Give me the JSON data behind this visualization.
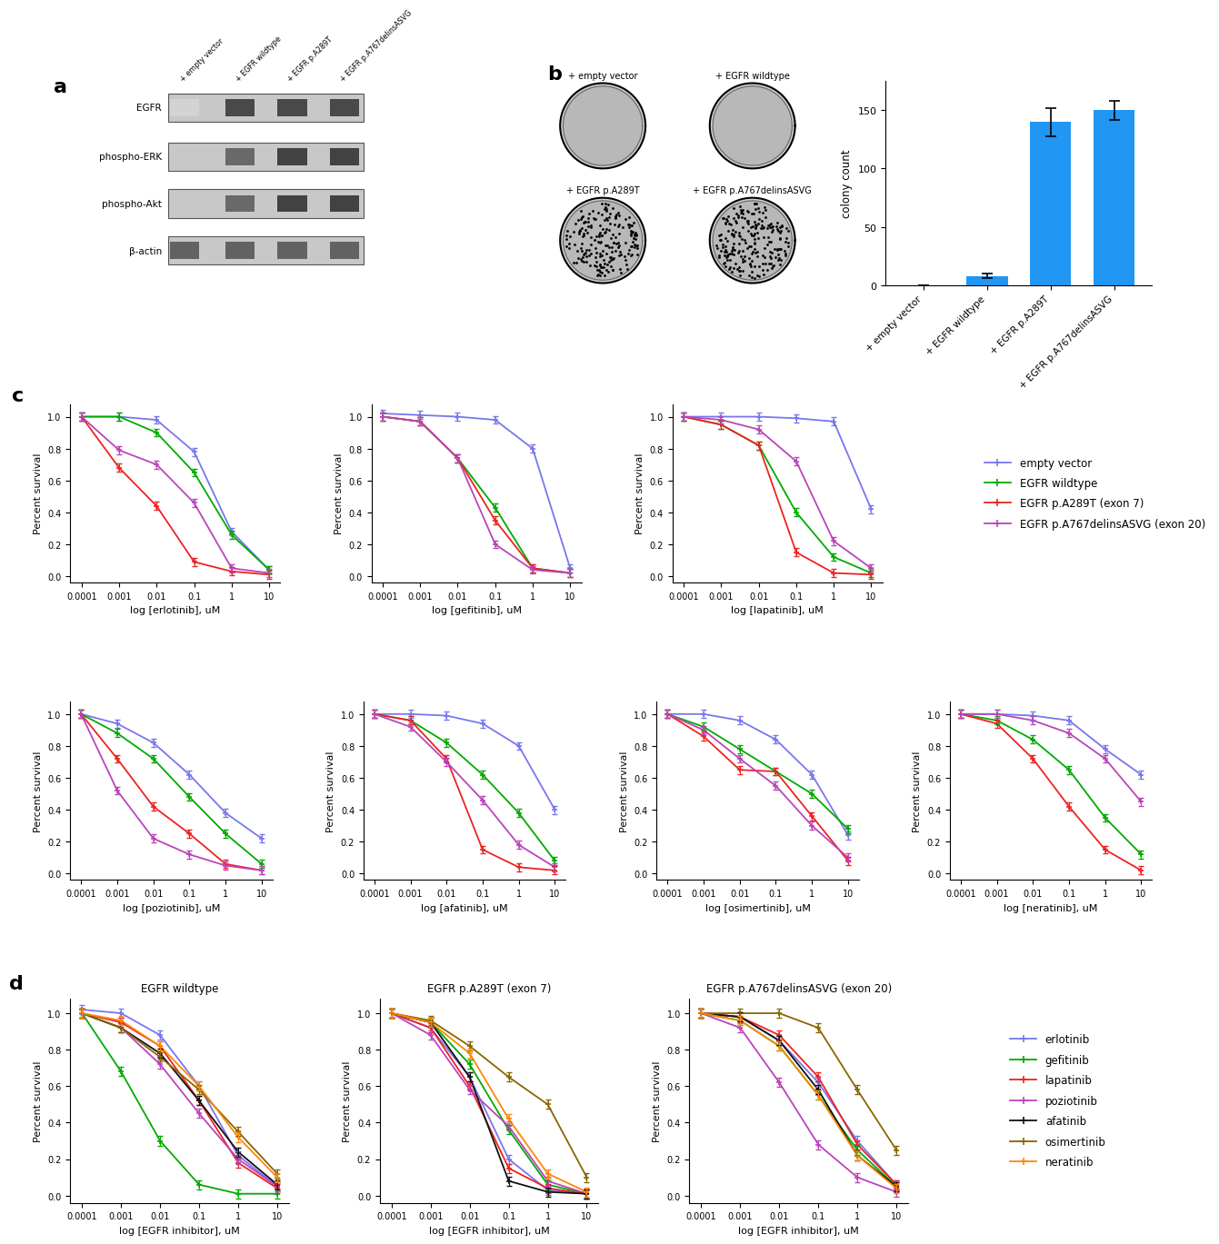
{
  "bar_categories": [
    "+ empty vector",
    "+ EGFR wildtype",
    "+ EGFR p.A289T",
    "+ EGFR p.A767delinsASVG"
  ],
  "bar_values": [
    0,
    8,
    140,
    150
  ],
  "bar_errors": [
    0,
    2,
    12,
    8
  ],
  "bar_color": "#2196F3",
  "bar_ylabel": "colony count",
  "bar_ylim": [
    0,
    175
  ],
  "bar_yticks": [
    0,
    50,
    100,
    150
  ],
  "legend_c_labels": [
    "empty vector",
    "EGFR wildtype",
    "EGFR p.A289T (exon 7)",
    "EGFR p.A767delinsASVG (exon 20)"
  ],
  "legend_c_colors": [
    "#7777EE",
    "#00AA00",
    "#EE2222",
    "#BB44BB"
  ],
  "xvals": [
    -4,
    -3,
    -2,
    -1,
    0,
    1
  ],
  "xtick_labels": [
    "0.0001",
    "0.001",
    "0.01",
    "0.1",
    "1",
    "10"
  ],
  "erlotinib": {
    "empty_vector": [
      1.0,
      1.0,
      0.98,
      0.78,
      0.28,
      0.04
    ],
    "egfr_wt": [
      1.0,
      1.0,
      0.9,
      0.65,
      0.26,
      0.04
    ],
    "egfr_a289t": [
      1.0,
      0.68,
      0.44,
      0.09,
      0.03,
      0.01
    ],
    "egfr_ex20ins": [
      1.0,
      0.79,
      0.7,
      0.46,
      0.05,
      0.02
    ]
  },
  "gefitinib": {
    "empty_vector": [
      1.02,
      1.01,
      1.0,
      0.98,
      0.8,
      0.05
    ],
    "egfr_wt": [
      1.0,
      0.97,
      0.74,
      0.43,
      0.05,
      0.02
    ],
    "egfr_a289t": [
      1.0,
      0.97,
      0.74,
      0.35,
      0.05,
      0.02
    ],
    "egfr_ex20ins": [
      1.0,
      0.97,
      0.74,
      0.2,
      0.04,
      0.02
    ]
  },
  "lapatinib": {
    "empty_vector": [
      1.0,
      1.0,
      1.0,
      0.99,
      0.97,
      0.42
    ],
    "egfr_wt": [
      1.0,
      0.95,
      0.82,
      0.4,
      0.12,
      0.02
    ],
    "egfr_a289t": [
      1.0,
      0.95,
      0.82,
      0.15,
      0.02,
      0.01
    ],
    "egfr_ex20ins": [
      1.0,
      0.98,
      0.92,
      0.72,
      0.22,
      0.05
    ]
  },
  "poziotinib": {
    "empty_vector": [
      1.0,
      0.94,
      0.82,
      0.62,
      0.38,
      0.22
    ],
    "egfr_wt": [
      1.0,
      0.88,
      0.72,
      0.48,
      0.25,
      0.06
    ],
    "egfr_a289t": [
      1.0,
      0.72,
      0.42,
      0.25,
      0.06,
      0.02
    ],
    "egfr_ex20ins": [
      1.0,
      0.52,
      0.22,
      0.12,
      0.05,
      0.02
    ]
  },
  "afatinib": {
    "empty_vector": [
      1.0,
      1.0,
      0.99,
      0.94,
      0.8,
      0.4
    ],
    "egfr_wt": [
      1.0,
      0.96,
      0.82,
      0.62,
      0.38,
      0.08
    ],
    "egfr_a289t": [
      1.0,
      0.96,
      0.72,
      0.15,
      0.04,
      0.02
    ],
    "egfr_ex20ins": [
      1.0,
      0.92,
      0.7,
      0.46,
      0.18,
      0.04
    ]
  },
  "osimertinib": {
    "empty_vector": [
      1.0,
      1.0,
      0.96,
      0.84,
      0.62,
      0.24
    ],
    "egfr_wt": [
      1.0,
      0.92,
      0.78,
      0.64,
      0.5,
      0.28
    ],
    "egfr_a289t": [
      1.0,
      0.86,
      0.65,
      0.64,
      0.36,
      0.08
    ],
    "egfr_ex20ins": [
      1.0,
      0.9,
      0.72,
      0.55,
      0.3,
      0.1
    ]
  },
  "neratinib": {
    "empty_vector": [
      1.0,
      1.0,
      0.99,
      0.96,
      0.78,
      0.62
    ],
    "egfr_wt": [
      1.0,
      0.96,
      0.84,
      0.65,
      0.35,
      0.12
    ],
    "egfr_a289t": [
      1.0,
      0.94,
      0.72,
      0.42,
      0.15,
      0.02
    ],
    "egfr_ex20ins": [
      1.0,
      1.0,
      0.96,
      0.88,
      0.72,
      0.45
    ]
  },
  "d_wt": {
    "erlotinib": [
      1.02,
      1.0,
      0.88,
      0.6,
      0.22,
      0.05
    ],
    "gefitinib": [
      1.0,
      0.68,
      0.3,
      0.06,
      0.01,
      0.01
    ],
    "lapatinib": [
      1.0,
      0.95,
      0.82,
      0.52,
      0.18,
      0.04
    ],
    "poziotinib": [
      1.0,
      0.92,
      0.72,
      0.45,
      0.2,
      0.05
    ],
    "afatinib": [
      1.0,
      0.92,
      0.78,
      0.52,
      0.24,
      0.06
    ],
    "osimertinib": [
      1.0,
      0.92,
      0.76,
      0.58,
      0.35,
      0.12
    ],
    "neratinib": [
      1.0,
      0.96,
      0.82,
      0.6,
      0.32,
      0.1
    ]
  },
  "d_a289t": {
    "erlotinib": [
      1.0,
      0.92,
      0.65,
      0.2,
      0.03,
      0.01
    ],
    "gefitinib": [
      1.0,
      0.95,
      0.72,
      0.36,
      0.06,
      0.01
    ],
    "lapatinib": [
      1.0,
      0.92,
      0.6,
      0.15,
      0.04,
      0.01
    ],
    "poziotinib": [
      1.0,
      0.88,
      0.58,
      0.38,
      0.08,
      0.01
    ],
    "afatinib": [
      1.0,
      0.95,
      0.65,
      0.08,
      0.02,
      0.01
    ],
    "osimertinib": [
      1.0,
      0.96,
      0.82,
      0.65,
      0.5,
      0.1
    ],
    "neratinib": [
      1.0,
      0.95,
      0.78,
      0.42,
      0.12,
      0.02
    ]
  },
  "d_ex20ins": {
    "erlotinib": [
      1.0,
      0.98,
      0.85,
      0.62,
      0.3,
      0.06
    ],
    "gefitinib": [
      1.0,
      0.96,
      0.82,
      0.55,
      0.25,
      0.05
    ],
    "lapatinib": [
      1.0,
      0.98,
      0.88,
      0.65,
      0.28,
      0.06
    ],
    "poziotinib": [
      1.0,
      0.92,
      0.62,
      0.28,
      0.1,
      0.02
    ],
    "afatinib": [
      1.0,
      0.98,
      0.85,
      0.58,
      0.22,
      0.05
    ],
    "osimertinib": [
      1.0,
      1.0,
      1.0,
      0.92,
      0.58,
      0.25
    ],
    "neratinib": [
      1.0,
      0.96,
      0.82,
      0.55,
      0.22,
      0.04
    ]
  },
  "d_colors": {
    "erlotinib": "#7777EE",
    "gefitinib": "#00AA00",
    "lapatinib": "#EE2222",
    "poziotinib": "#BB44BB",
    "afatinib": "#111111",
    "osimertinib": "#886600",
    "neratinib": "#FF8800"
  },
  "panel_a_labels": [
    "EGFR",
    "phospho-ERK",
    "phospho-Akt",
    "β-actin"
  ],
  "panel_a_col_labels": [
    "+ empty vector",
    "+ EGFR wildtype",
    "+ EGFR p.A289T",
    "+ EGFR p.A767delinsASVG"
  ]
}
